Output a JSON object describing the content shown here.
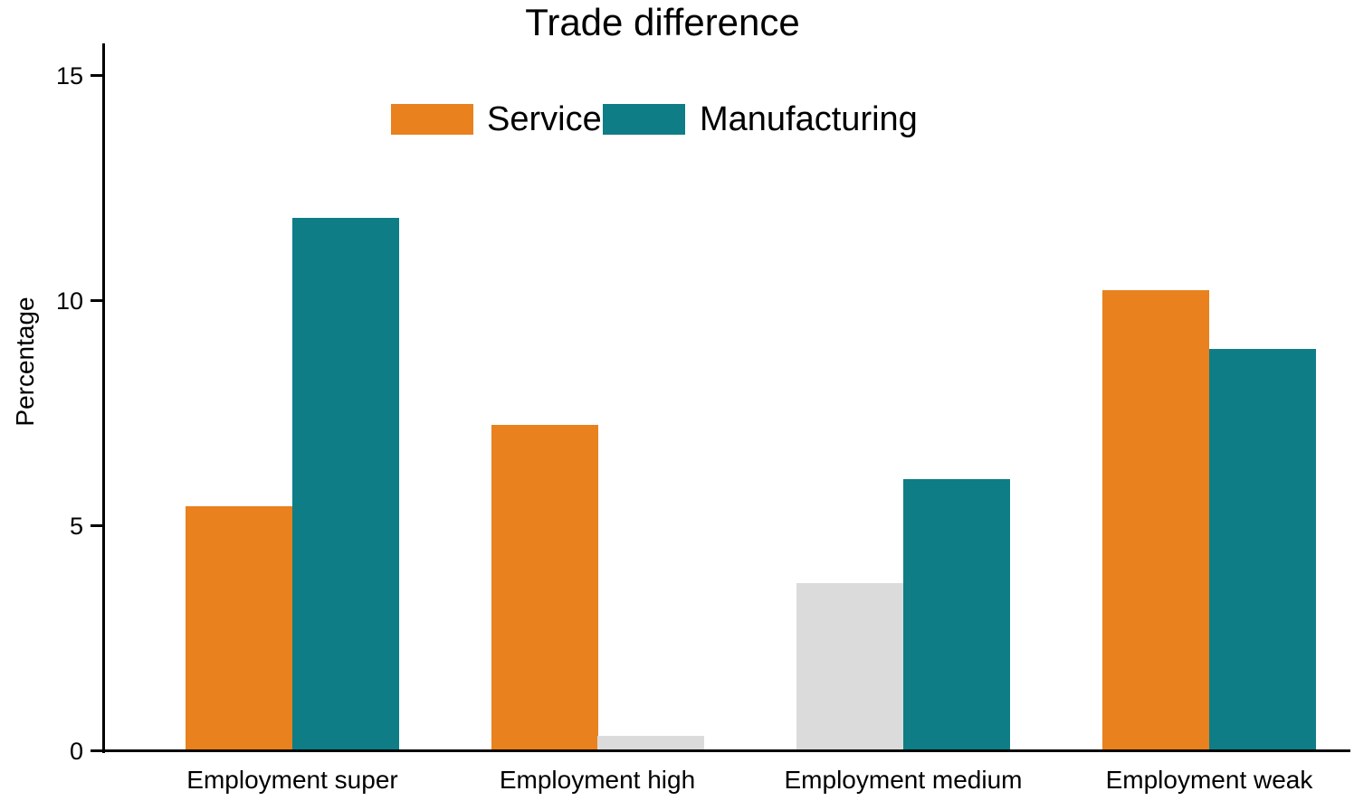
{
  "page": {
    "background": "#ffffff",
    "text_color": "#000000",
    "axis_color": "#000000"
  },
  "chart_data": {
    "type": "bar",
    "title": "Trade difference",
    "ylabel": "Percentage",
    "xlabel": "",
    "categories": [
      "Employment super",
      "Employment high",
      "Employment medium",
      "Employment weak"
    ],
    "series": [
      {
        "name": "Services",
        "color": "#e8811e",
        "values": [
          5.4,
          7.2,
          3.7,
          10.2
        ],
        "muted": [
          false,
          false,
          true,
          false
        ]
      },
      {
        "name": "Manufacturing",
        "color": "#0e7d86",
        "values": [
          11.8,
          0.3,
          6.0,
          8.9
        ],
        "muted": [
          false,
          true,
          false,
          false
        ]
      }
    ],
    "muted_color": "#dbdbdb",
    "muted_note": "Gray bars: Services at Employment medium, Manufacturing at Employment high",
    "yticks": [
      0,
      5,
      10,
      15
    ],
    "ylim": [
      0,
      15.7
    ],
    "grid": false,
    "legend_position": "top-center"
  }
}
